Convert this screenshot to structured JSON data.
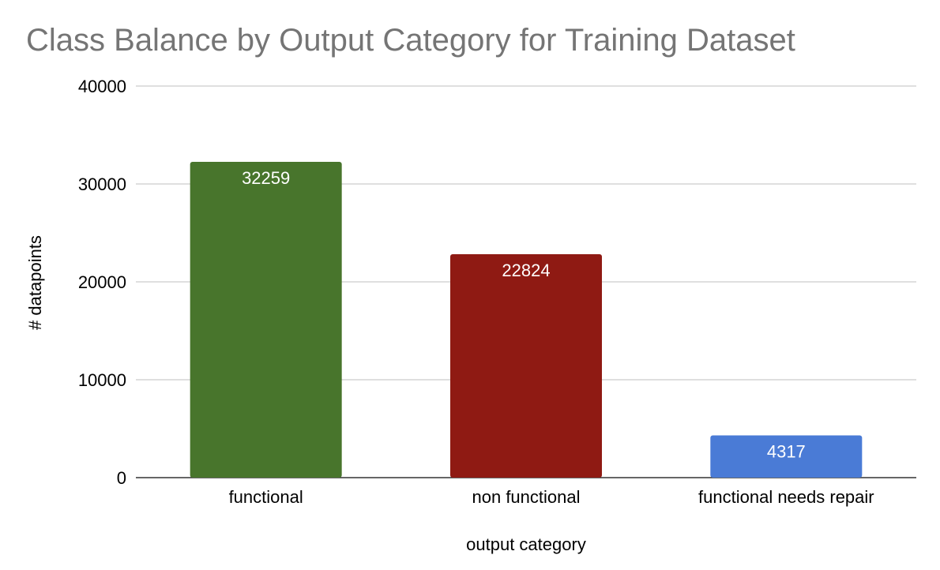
{
  "chart_data": {
    "type": "bar",
    "title": "Class Balance by Output Category for Training Dataset",
    "xlabel": "output category",
    "ylabel": "# datapoints",
    "categories": [
      "functional",
      "non functional",
      "functional needs repair"
    ],
    "values": [
      32259,
      22824,
      4317
    ],
    "data_labels": [
      "32259",
      "22824",
      "4317"
    ],
    "bar_colors": [
      "#48752c",
      "#8f1a13",
      "#4a7bd6"
    ],
    "ylim": [
      0,
      40000
    ],
    "yticks": [
      0,
      10000,
      20000,
      30000,
      40000
    ],
    "ytick_labels": [
      "0",
      "10000",
      "20000",
      "30000",
      "40000"
    ],
    "grid": true,
    "legend": "none"
  }
}
